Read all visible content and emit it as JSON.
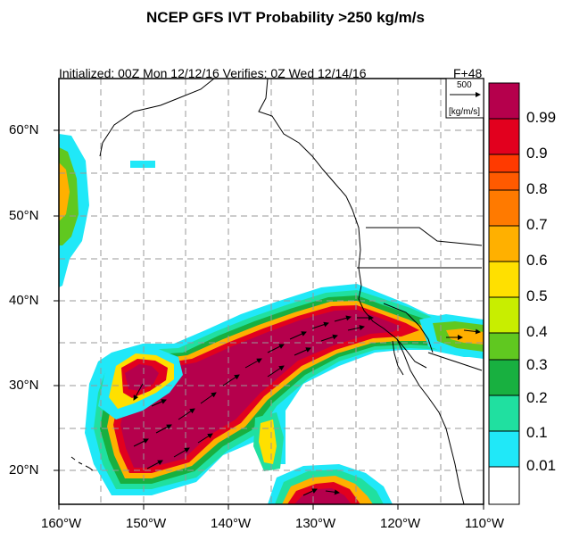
{
  "header": {
    "title": "NCEP GFS IVT Probability >250 kg/m/s",
    "subtitle": "Initialized: 00Z Mon 12/12/16 Verifies:  0Z Wed 12/14/16",
    "lead": "F+48"
  },
  "reference_vector": {
    "magnitude": "500",
    "units": "[kg/m/s]"
  },
  "axes": {
    "lon_labels": [
      "160°W",
      "150°W",
      "140°W",
      "130°W",
      "120°W",
      "110°W"
    ],
    "lat_labels": [
      "60°N",
      "50°N",
      "40°N",
      "30°N",
      "20°N"
    ]
  },
  "colorbar": {
    "labels": [
      "0.99",
      "0.9",
      "0.8",
      "0.7",
      "0.6",
      "0.5",
      "0.4",
      "0.3",
      "0.2",
      "0.1",
      "0.01"
    ],
    "colors": [
      "#b5004c",
      "#e2001e",
      "#ff3a00",
      "#ff7a00",
      "#ffb000",
      "#ffe000",
      "#c8ee00",
      "#60c820",
      "#18b040",
      "#20e0a0",
      "#20e8f8",
      "#ffffff"
    ]
  },
  "map_extent": {
    "lon": [
      -160,
      -110
    ],
    "lat": [
      16,
      66
    ]
  }
}
